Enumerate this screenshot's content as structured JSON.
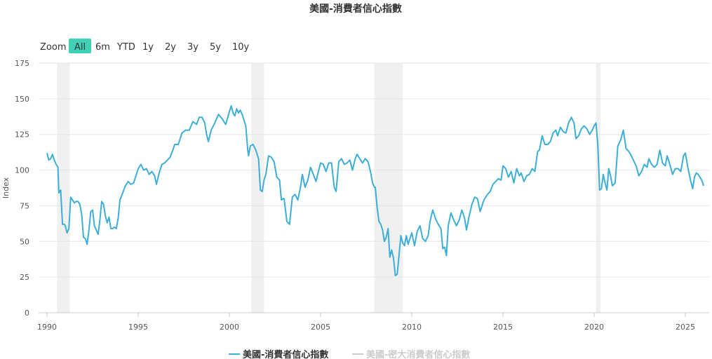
{
  "title": "美國-消費者信心指數",
  "range_selector": {
    "zoom_label": "Zoom",
    "buttons": [
      "All",
      "6m",
      "YTD",
      "1y",
      "2y",
      "3y",
      "5y",
      "10y"
    ],
    "active": "All"
  },
  "colors": {
    "series": "#3daed6",
    "recession": "#f0f0f0",
    "grid": "#e6e6e6",
    "active_button": "#3fd0b5",
    "legend_inactive": "#cccccc"
  },
  "chart_data": {
    "type": "line",
    "title": "美國-消費者信心指數",
    "ylabel": "Index",
    "xlabel": "",
    "xlim": [
      1990.0,
      2026.0
    ],
    "ylim": [
      0,
      175
    ],
    "y_ticks": [
      0,
      25,
      50,
      75,
      100,
      125,
      150,
      175
    ],
    "x_ticks": [
      1990,
      1995,
      2000,
      2005,
      2010,
      2015,
      2020,
      2025
    ],
    "grid": "horizontal",
    "legend_position": "bottom-center",
    "recession_bands": [
      [
        1990.55,
        1991.25
      ],
      [
        2001.2,
        2001.9
      ],
      [
        2007.95,
        2009.5
      ],
      [
        2020.1,
        2020.35
      ]
    ],
    "series": [
      {
        "name": "美國-消費者信心指數",
        "visible": true,
        "points": [
          [
            1990.0,
            112
          ],
          [
            1990.1,
            107
          ],
          [
            1990.2,
            108
          ],
          [
            1990.3,
            111
          ],
          [
            1990.4,
            107
          ],
          [
            1990.5,
            104
          ],
          [
            1990.6,
            102
          ],
          [
            1990.65,
            84
          ],
          [
            1990.75,
            86
          ],
          [
            1990.85,
            62
          ],
          [
            1990.95,
            62
          ],
          [
            1991.0,
            61
          ],
          [
            1991.1,
            56
          ],
          [
            1991.2,
            59
          ],
          [
            1991.3,
            81
          ],
          [
            1991.4,
            79
          ],
          [
            1991.5,
            77
          ],
          [
            1991.6,
            78
          ],
          [
            1991.7,
            78
          ],
          [
            1991.8,
            76
          ],
          [
            1991.9,
            69
          ],
          [
            1992.0,
            53
          ],
          [
            1992.1,
            52
          ],
          [
            1992.2,
            48
          ],
          [
            1992.3,
            58
          ],
          [
            1992.4,
            71
          ],
          [
            1992.5,
            72
          ],
          [
            1992.6,
            61
          ],
          [
            1992.7,
            58
          ],
          [
            1992.8,
            55
          ],
          [
            1992.9,
            65
          ],
          [
            1993.0,
            78
          ],
          [
            1993.1,
            76
          ],
          [
            1993.2,
            68
          ],
          [
            1993.3,
            63
          ],
          [
            1993.4,
            67
          ],
          [
            1993.5,
            59
          ],
          [
            1993.6,
            59
          ],
          [
            1993.7,
            60
          ],
          [
            1993.8,
            59
          ],
          [
            1993.9,
            66
          ],
          [
            1994.0,
            79
          ],
          [
            1994.15,
            84
          ],
          [
            1994.3,
            89
          ],
          [
            1994.45,
            92
          ],
          [
            1994.6,
            90
          ],
          [
            1994.75,
            91
          ],
          [
            1994.9,
            97
          ],
          [
            1995.0,
            101
          ],
          [
            1995.15,
            104
          ],
          [
            1995.3,
            100
          ],
          [
            1995.45,
            101
          ],
          [
            1995.6,
            97
          ],
          [
            1995.75,
            99
          ],
          [
            1995.9,
            96
          ],
          [
            1996.0,
            90
          ],
          [
            1996.15,
            98
          ],
          [
            1996.3,
            104
          ],
          [
            1996.45,
            105
          ],
          [
            1996.6,
            107
          ],
          [
            1996.75,
            109
          ],
          [
            1996.9,
            114
          ],
          [
            1997.0,
            118
          ],
          [
            1997.2,
            118
          ],
          [
            1997.4,
            126
          ],
          [
            1997.6,
            128
          ],
          [
            1997.8,
            128
          ],
          [
            1998.0,
            134
          ],
          [
            1998.2,
            132
          ],
          [
            1998.35,
            137
          ],
          [
            1998.5,
            137
          ],
          [
            1998.65,
            133
          ],
          [
            1998.75,
            125
          ],
          [
            1998.85,
            120
          ],
          [
            1999.0,
            128
          ],
          [
            1999.2,
            133
          ],
          [
            1999.4,
            139
          ],
          [
            1999.6,
            136
          ],
          [
            1999.8,
            132
          ],
          [
            2000.0,
            141
          ],
          [
            2000.1,
            145
          ],
          [
            2000.2,
            140
          ],
          [
            2000.3,
            138
          ],
          [
            2000.4,
            143
          ],
          [
            2000.5,
            140
          ],
          [
            2000.6,
            142
          ],
          [
            2000.7,
            139
          ],
          [
            2000.8,
            135
          ],
          [
            2000.9,
            131
          ],
          [
            2001.0,
            115
          ],
          [
            2001.05,
            110
          ],
          [
            2001.15,
            117
          ],
          [
            2001.3,
            118
          ],
          [
            2001.45,
            114
          ],
          [
            2001.6,
            108
          ],
          [
            2001.7,
            86
          ],
          [
            2001.8,
            85
          ],
          [
            2001.9,
            93
          ],
          [
            2002.0,
            97
          ],
          [
            2002.15,
            110
          ],
          [
            2002.3,
            109
          ],
          [
            2002.45,
            106
          ],
          [
            2002.6,
            95
          ],
          [
            2002.75,
            93
          ],
          [
            2002.85,
            79
          ],
          [
            2002.95,
            80
          ],
          [
            2003.0,
            80
          ],
          [
            2003.15,
            64
          ],
          [
            2003.3,
            62
          ],
          [
            2003.45,
            81
          ],
          [
            2003.6,
            83
          ],
          [
            2003.75,
            79
          ],
          [
            2003.9,
            88
          ],
          [
            2004.0,
            97
          ],
          [
            2004.15,
            88
          ],
          [
            2004.3,
            93
          ],
          [
            2004.45,
            102
          ],
          [
            2004.6,
            97
          ],
          [
            2004.75,
            92
          ],
          [
            2004.9,
            100
          ],
          [
            2005.0,
            105
          ],
          [
            2005.15,
            104
          ],
          [
            2005.3,
            99
          ],
          [
            2005.45,
            105
          ],
          [
            2005.6,
            105
          ],
          [
            2005.75,
            88
          ],
          [
            2005.85,
            85
          ],
          [
            2005.95,
            99
          ],
          [
            2006.0,
            106
          ],
          [
            2006.15,
            108
          ],
          [
            2006.3,
            104
          ],
          [
            2006.45,
            105
          ],
          [
            2006.6,
            107
          ],
          [
            2006.75,
            100
          ],
          [
            2006.9,
            108
          ],
          [
            2007.0,
            111
          ],
          [
            2007.15,
            108
          ],
          [
            2007.3,
            105
          ],
          [
            2007.45,
            108
          ],
          [
            2007.6,
            106
          ],
          [
            2007.75,
            98
          ],
          [
            2007.85,
            91
          ],
          [
            2007.95,
            88
          ],
          [
            2008.0,
            88
          ],
          [
            2008.1,
            74
          ],
          [
            2008.2,
            64
          ],
          [
            2008.3,
            62
          ],
          [
            2008.4,
            58
          ],
          [
            2008.5,
            50
          ],
          [
            2008.6,
            53
          ],
          [
            2008.7,
            59
          ],
          [
            2008.8,
            39
          ],
          [
            2008.9,
            44
          ],
          [
            2009.0,
            38
          ],
          [
            2009.1,
            26
          ],
          [
            2009.2,
            27
          ],
          [
            2009.3,
            40
          ],
          [
            2009.4,
            54
          ],
          [
            2009.5,
            49
          ],
          [
            2009.6,
            47
          ],
          [
            2009.7,
            54
          ],
          [
            2009.8,
            48
          ],
          [
            2009.9,
            52
          ],
          [
            2010.0,
            56
          ],
          [
            2010.15,
            47
          ],
          [
            2010.3,
            57
          ],
          [
            2010.45,
            61
          ],
          [
            2010.6,
            52
          ],
          [
            2010.75,
            50
          ],
          [
            2010.9,
            54
          ],
          [
            2011.0,
            64
          ],
          [
            2011.15,
            72
          ],
          [
            2011.3,
            66
          ],
          [
            2011.45,
            62
          ],
          [
            2011.6,
            59
          ],
          [
            2011.7,
            45
          ],
          [
            2011.8,
            46
          ],
          [
            2011.9,
            40
          ],
          [
            2012.0,
            61
          ],
          [
            2012.15,
            70
          ],
          [
            2012.3,
            65
          ],
          [
            2012.45,
            61
          ],
          [
            2012.6,
            65
          ],
          [
            2012.75,
            72
          ],
          [
            2012.9,
            66
          ],
          [
            2013.0,
            58
          ],
          [
            2013.15,
            68
          ],
          [
            2013.3,
            76
          ],
          [
            2013.45,
            81
          ],
          [
            2013.6,
            80
          ],
          [
            2013.75,
            71
          ],
          [
            2013.9,
            77
          ],
          [
            2014.0,
            80
          ],
          [
            2014.15,
            83
          ],
          [
            2014.3,
            85
          ],
          [
            2014.45,
            90
          ],
          [
            2014.6,
            92
          ],
          [
            2014.75,
            94
          ],
          [
            2014.9,
            93
          ],
          [
            2015.0,
            103
          ],
          [
            2015.15,
            101
          ],
          [
            2015.3,
            95
          ],
          [
            2015.45,
            99
          ],
          [
            2015.6,
            91
          ],
          [
            2015.75,
            101
          ],
          [
            2015.9,
            96
          ],
          [
            2016.0,
            98
          ],
          [
            2016.15,
            92
          ],
          [
            2016.3,
            96
          ],
          [
            2016.45,
            97
          ],
          [
            2016.6,
            101
          ],
          [
            2016.75,
            99
          ],
          [
            2016.9,
            113
          ],
          [
            2017.0,
            114
          ],
          [
            2017.15,
            124
          ],
          [
            2017.3,
            118
          ],
          [
            2017.45,
            118
          ],
          [
            2017.6,
            120
          ],
          [
            2017.75,
            126
          ],
          [
            2017.9,
            128
          ],
          [
            2018.0,
            124
          ],
          [
            2018.15,
            130
          ],
          [
            2018.3,
            127
          ],
          [
            2018.45,
            126
          ],
          [
            2018.6,
            133
          ],
          [
            2018.75,
            137
          ],
          [
            2018.9,
            133
          ],
          [
            2019.0,
            122
          ],
          [
            2019.15,
            124
          ],
          [
            2019.3,
            129
          ],
          [
            2019.45,
            131
          ],
          [
            2019.6,
            129
          ],
          [
            2019.75,
            125
          ],
          [
            2019.9,
            128
          ],
          [
            2020.0,
            131
          ],
          [
            2020.1,
            133
          ],
          [
            2020.2,
            118
          ],
          [
            2020.3,
            86
          ],
          [
            2020.4,
            87
          ],
          [
            2020.5,
            97
          ],
          [
            2020.6,
            91
          ],
          [
            2020.7,
            86
          ],
          [
            2020.8,
            101
          ],
          [
            2020.9,
            96
          ],
          [
            2021.0,
            89
          ],
          [
            2021.15,
            91
          ],
          [
            2021.3,
            117
          ],
          [
            2021.45,
            121
          ],
          [
            2021.6,
            128
          ],
          [
            2021.75,
            115
          ],
          [
            2021.9,
            113
          ],
          [
            2022.0,
            111
          ],
          [
            2022.15,
            107
          ],
          [
            2022.3,
            103
          ],
          [
            2022.45,
            96
          ],
          [
            2022.6,
            99
          ],
          [
            2022.75,
            104
          ],
          [
            2022.9,
            102
          ],
          [
            2023.0,
            108
          ],
          [
            2023.15,
            104
          ],
          [
            2023.3,
            102
          ],
          [
            2023.45,
            104
          ],
          [
            2023.6,
            114
          ],
          [
            2023.75,
            105
          ],
          [
            2023.9,
            103
          ],
          [
            2024.0,
            110
          ],
          [
            2024.15,
            104
          ],
          [
            2024.3,
            97
          ],
          [
            2024.45,
            101
          ],
          [
            2024.6,
            101
          ],
          [
            2024.75,
            99
          ],
          [
            2024.9,
            110
          ],
          [
            2025.0,
            112
          ],
          [
            2025.15,
            101
          ],
          [
            2025.3,
            92
          ],
          [
            2025.4,
            87
          ],
          [
            2025.5,
            95
          ],
          [
            2025.6,
            98
          ],
          [
            2025.7,
            97
          ],
          [
            2025.8,
            95
          ],
          [
            2025.9,
            93
          ],
          [
            2026.0,
            89
          ]
        ]
      },
      {
        "name": "美國-密大消費者信心指數",
        "visible": false,
        "points": []
      }
    ]
  }
}
